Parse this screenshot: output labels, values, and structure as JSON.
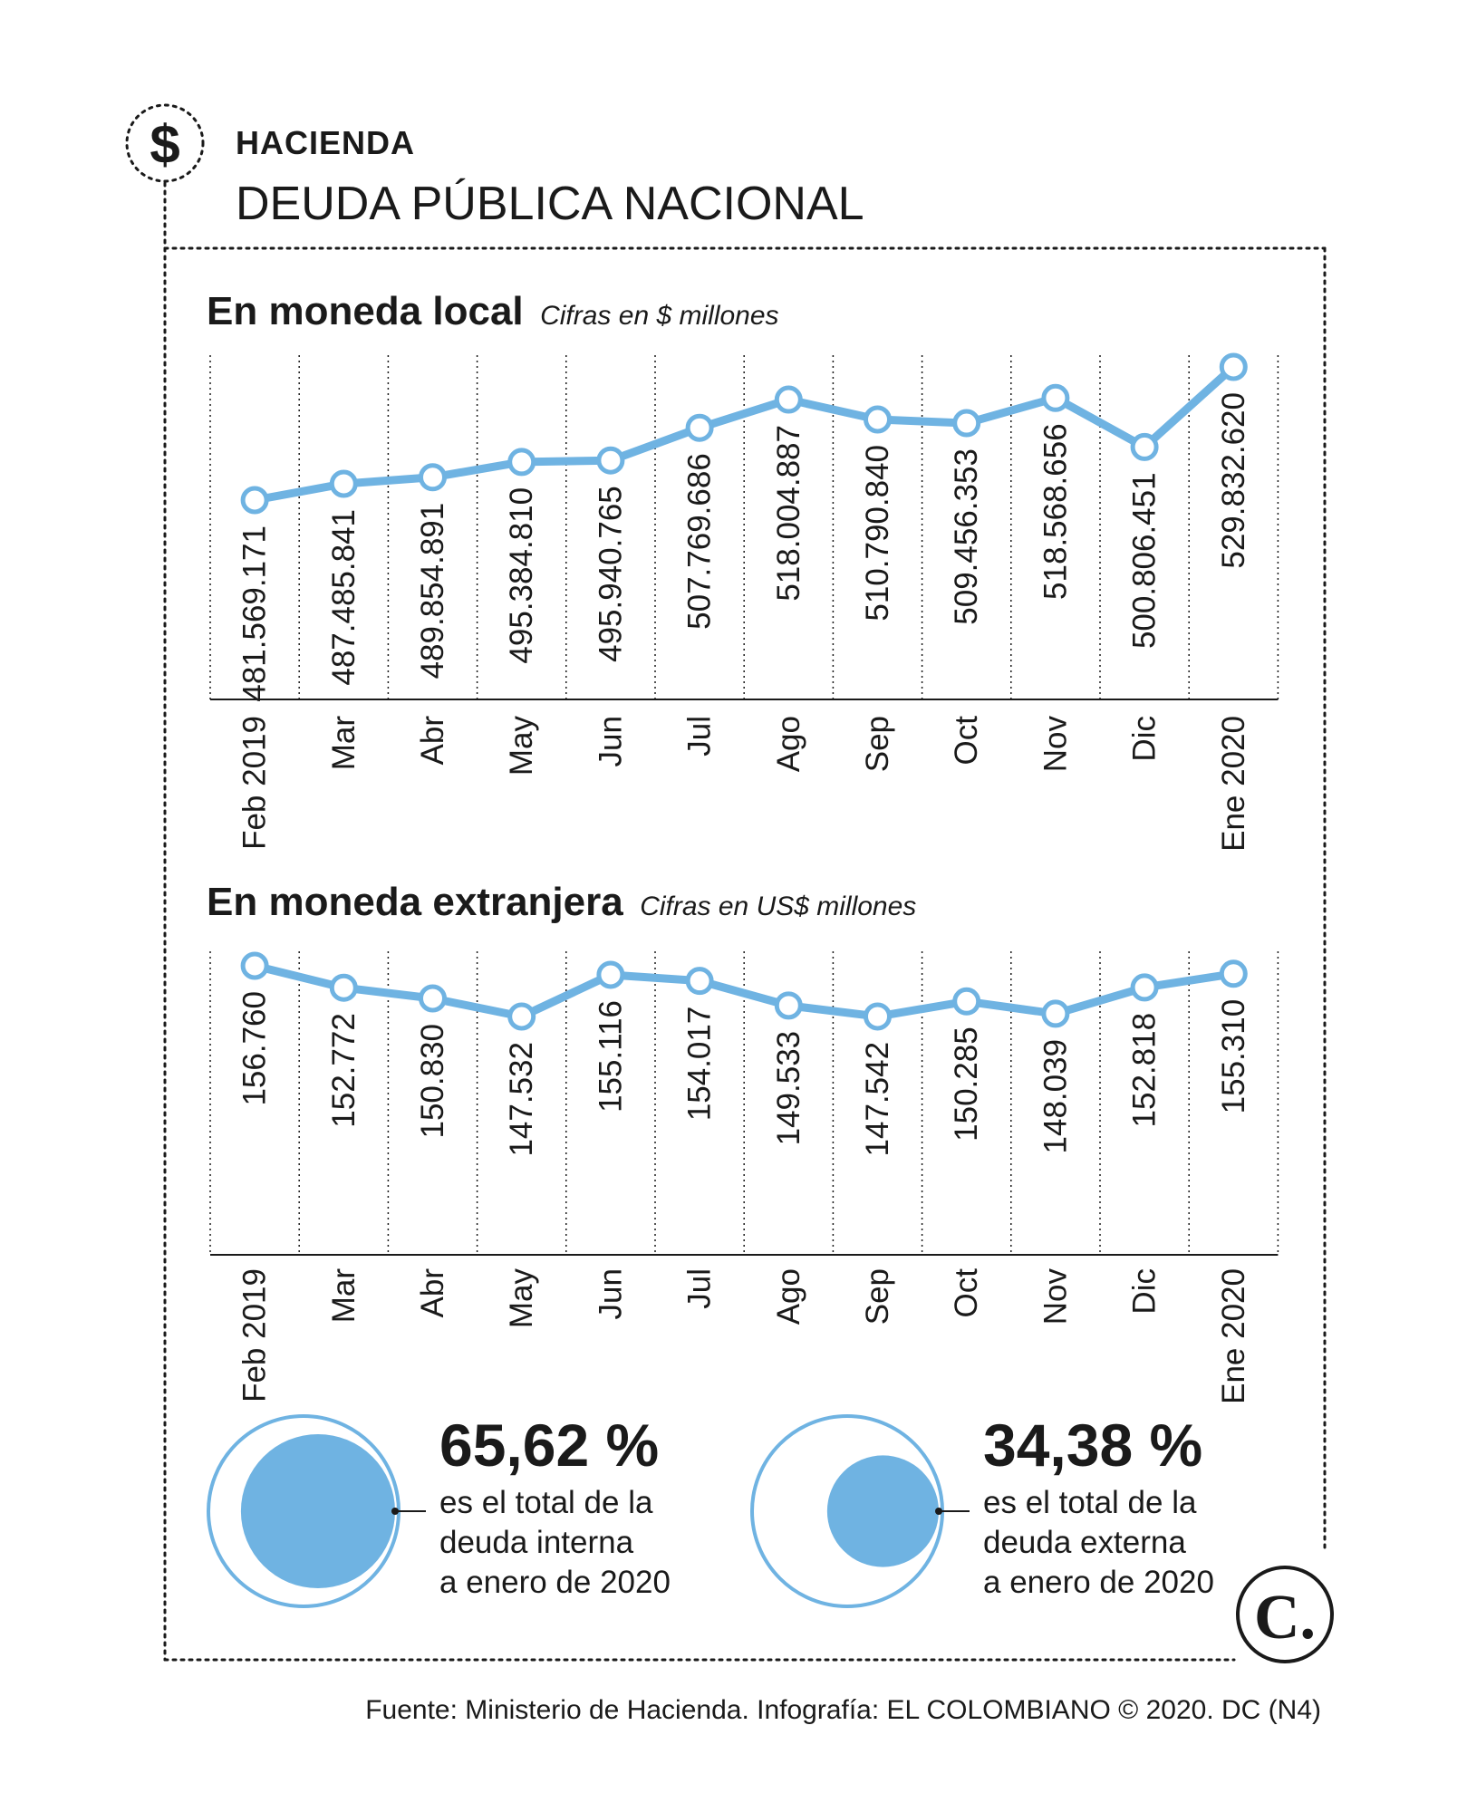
{
  "section": "HACIENDA",
  "title": "DEUDA PÚBLICA NACIONAL",
  "icon": "dollar-icon",
  "colors": {
    "line": "#6fb3e2",
    "fill": "#6fb3e2",
    "ink": "#1a1a1a"
  },
  "chart_data": [
    {
      "type": "line",
      "title": "En moneda local",
      "subtitle": "Cifras en $ millones",
      "categories": [
        "Feb 2019",
        "Mar",
        "Abr",
        "May",
        "Jun",
        "Jul",
        "Ago",
        "Sep",
        "Oct",
        "Nov",
        "Dic",
        "Ene 2020"
      ],
      "values": [
        481569171,
        487485841,
        489854891,
        495384810,
        495940765,
        507769686,
        518004887,
        510790840,
        509456353,
        518568656,
        500806451,
        529832620
      ],
      "labels": [
        "481.569.171",
        "487.485.841",
        "489.854.891",
        "495.384.810",
        "495.940.765",
        "507.769.686",
        "518.004.887",
        "510.790.840",
        "509.456.353",
        "518.568.656",
        "500.806.451",
        "529.832.620"
      ],
      "grid": "vertical dotted"
    },
    {
      "type": "line",
      "title": "En moneda extranjera",
      "subtitle": "Cifras en US$ millones",
      "categories": [
        "Feb 2019",
        "Mar",
        "Abr",
        "May",
        "Jun",
        "Jul",
        "Ago",
        "Sep",
        "Oct",
        "Nov",
        "Dic",
        "Ene 2020"
      ],
      "values": [
        156760,
        152772,
        150830,
        147532,
        155116,
        154017,
        149533,
        147542,
        150285,
        148039,
        152818,
        155310
      ],
      "labels": [
        "156.760",
        "152.772",
        "150.830",
        "147.532",
        "155.116",
        "154.017",
        "149.533",
        "147.542",
        "150.285",
        "148.039",
        "152.818",
        "155.310"
      ],
      "grid": "vertical dotted"
    }
  ],
  "shares": [
    {
      "percent_label": "65,62 %",
      "share": 0.6562,
      "lines": [
        "es el total de la",
        "deuda interna",
        "a enero de 2020"
      ]
    },
    {
      "percent_label": "34,38 %",
      "share": 0.3438,
      "lines": [
        "es el total de la",
        "deuda externa",
        "a enero de 2020"
      ]
    }
  ],
  "logo": "C.",
  "source": "Fuente: Ministerio de Hacienda. Infografía: EL COLOMBIANO © 2020. DC (N4)"
}
